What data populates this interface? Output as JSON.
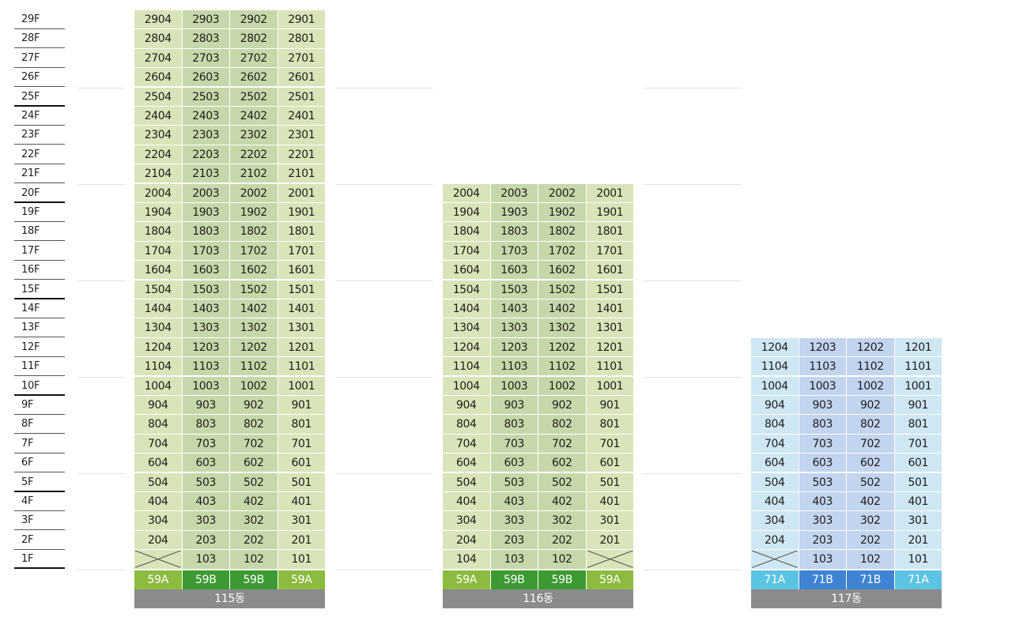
{
  "floors": [
    "29F",
    "28F",
    "27F",
    "26F",
    "25F",
    "24F",
    "23F",
    "22F",
    "21F",
    "20F",
    "19F",
    "18F",
    "17F",
    "16F",
    "15F",
    "14F",
    "13F",
    "12F",
    "11F",
    "10F",
    "9F",
    "8F",
    "7F",
    "6F",
    "5F",
    "4F",
    "3F",
    "2F",
    "1F"
  ],
  "buildings": [
    {
      "name": "115동",
      "max_floor": 29,
      "unit_suffixes": [
        "04",
        "03",
        "02",
        "01"
      ],
      "first_floor": [
        "",
        "103",
        "102",
        "101"
      ],
      "types": [
        "59A",
        "59B",
        "59B",
        "59A"
      ],
      "type_colors": [
        "#8cbb3f",
        "#3d9a33",
        "#3d9a33",
        "#8cbb3f"
      ],
      "cell_colors": [
        "#d9e4b8",
        "#c6d8a9",
        "#c6d8a9",
        "#d9e4b8"
      ]
    },
    {
      "name": "116동",
      "max_floor": 20,
      "unit_suffixes": [
        "04",
        "03",
        "02",
        "01"
      ],
      "first_floor": [
        "104",
        "103",
        "102",
        ""
      ],
      "types": [
        "59A",
        "59B",
        "59B",
        "59A"
      ],
      "type_colors": [
        "#8cbb3f",
        "#3d9a33",
        "#3d9a33",
        "#8cbb3f"
      ],
      "cell_colors": [
        "#d9e4b8",
        "#c6d8a9",
        "#c6d8a9",
        "#d9e4b8"
      ]
    },
    {
      "name": "117동",
      "max_floor": 12,
      "unit_suffixes": [
        "04",
        "03",
        "02",
        "01"
      ],
      "first_floor": [
        "",
        "103",
        "102",
        "101"
      ],
      "types": [
        "71A",
        "71B",
        "71B",
        "71A"
      ],
      "type_colors": [
        "#5cc4e3",
        "#3f83d4",
        "#3f83d4",
        "#5cc4e3"
      ],
      "cell_colors": [
        "#cfe6f3",
        "#c2d4ee",
        "#c2d4ee",
        "#cfe6f3"
      ]
    }
  ]
}
